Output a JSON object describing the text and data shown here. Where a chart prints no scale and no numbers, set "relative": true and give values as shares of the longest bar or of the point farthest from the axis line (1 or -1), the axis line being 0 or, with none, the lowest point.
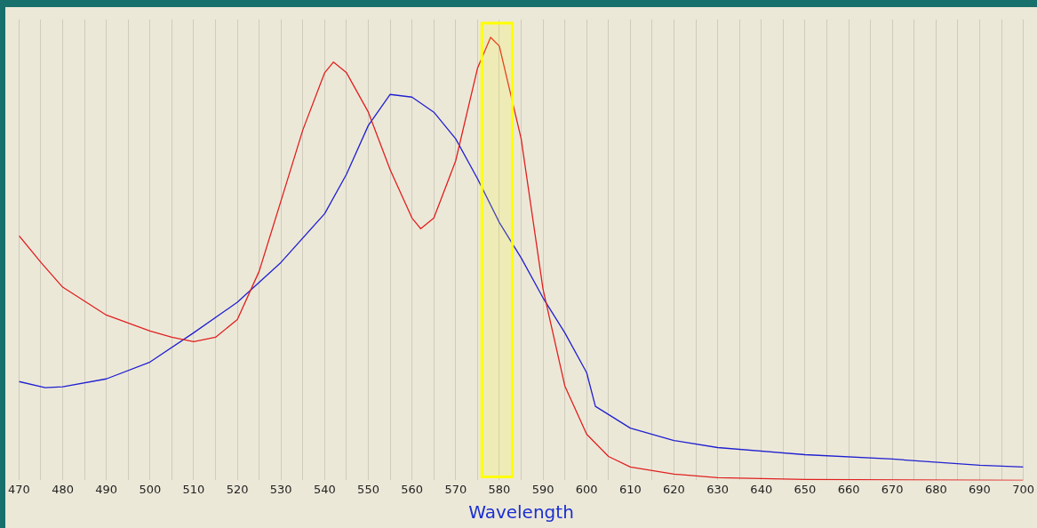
{
  "chart_data": {
    "type": "line",
    "relative": true,
    "xlabel": "Wavelength",
    "xlim": [
      470,
      700
    ],
    "xticks": [
      470,
      {
        "value": 475,
        "label": null
      },
      480,
      {
        "value": 485,
        "label": null
      },
      490,
      {
        "value": 495,
        "label": null
      },
      500,
      {
        "value": 505,
        "label": null
      },
      510,
      {
        "value": 515,
        "label": null
      },
      520,
      {
        "value": 525,
        "label": null
      },
      530,
      {
        "value": 535,
        "label": null
      },
      540,
      {
        "value": 545,
        "label": null
      },
      550,
      {
        "value": 555,
        "label": null
      },
      560,
      {
        "value": 565,
        "label": null
      },
      570,
      {
        "value": 575,
        "label": null
      },
      580,
      {
        "value": 585,
        "label": null
      },
      590,
      {
        "value": 595,
        "label": null
      },
      600,
      {
        "value": 605,
        "label": null
      },
      610,
      {
        "value": 615,
        "label": null
      },
      620,
      {
        "value": 625,
        "label": null
      },
      630,
      {
        "value": 635,
        "label": null
      },
      640,
      {
        "value": 645,
        "label": null
      },
      650,
      {
        "value": 655,
        "label": null
      },
      660,
      {
        "value": 665,
        "label": null
      },
      670,
      {
        "value": 675,
        "label": null
      },
      680,
      {
        "value": 685,
        "label": null
      },
      690,
      {
        "value": 695,
        "label": null
      },
      700
    ],
    "grid": "x",
    "legend": false,
    "marker": "none",
    "line_style": "solid",
    "bands": [
      {
        "axis": "x",
        "from": 576,
        "to": 583,
        "color": "#ffff00"
      }
    ],
    "series": [
      {
        "color": "#e02020",
        "x": [
          470,
          475,
          480,
          490,
          500,
          505,
          510,
          515,
          520,
          525,
          530,
          535,
          540,
          542,
          545,
          550,
          555,
          560,
          562,
          565,
          570,
          575,
          578,
          580,
          585,
          590,
          595,
          600,
          605,
          610,
          620,
          630,
          650,
          700
        ],
        "values": [
          0.552,
          0.492,
          0.436,
          0.373,
          0.337,
          0.323,
          0.313,
          0.323,
          0.363,
          0.472,
          0.631,
          0.791,
          0.92,
          0.944,
          0.92,
          0.831,
          0.701,
          0.592,
          0.568,
          0.592,
          0.721,
          0.93,
          1.0,
          0.98,
          0.771,
          0.432,
          0.213,
          0.104,
          0.054,
          0.03,
          0.014,
          0.006,
          0.002,
          0
        ]
      },
      {
        "color": "#2020d0",
        "x": [
          470,
          476,
          480,
          490,
          500,
          510,
          520,
          530,
          540,
          545,
          550,
          555,
          560,
          565,
          570,
          575,
          580,
          585,
          590,
          595,
          600,
          602,
          610,
          620,
          630,
          650,
          670,
          690,
          700
        ],
        "values": [
          0.223,
          0.209,
          0.211,
          0.229,
          0.267,
          0.333,
          0.402,
          0.492,
          0.602,
          0.691,
          0.801,
          0.871,
          0.865,
          0.831,
          0.771,
          0.681,
          0.582,
          0.502,
          0.412,
          0.333,
          0.243,
          0.167,
          0.118,
          0.09,
          0.074,
          0.058,
          0.048,
          0.034,
          0.03
        ]
      }
    ]
  }
}
